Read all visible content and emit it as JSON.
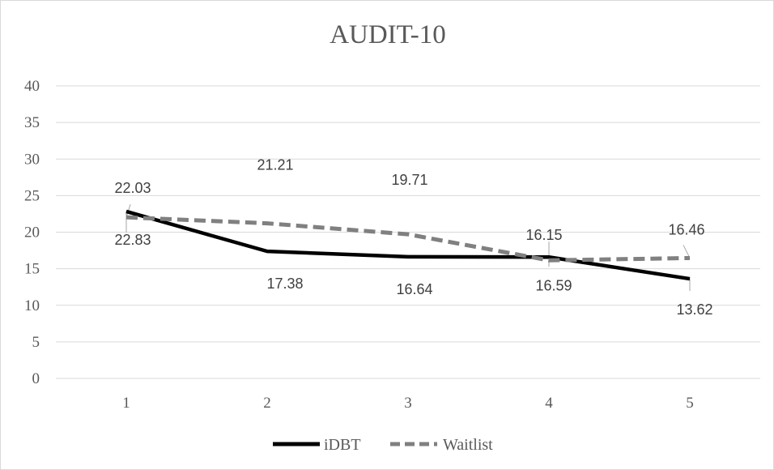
{
  "chart_data": {
    "type": "line",
    "title": "AUDIT-10",
    "categories": [
      "1",
      "2",
      "3",
      "4",
      "5"
    ],
    "ylim": [
      0,
      40
    ],
    "yticks": [
      "0",
      "5",
      "10",
      "15",
      "20",
      "25",
      "30",
      "35",
      "40"
    ],
    "grid": true,
    "legend_position": "bottom",
    "series": [
      {
        "name": "iDBT",
        "values": [
          22.83,
          17.38,
          16.64,
          16.59,
          13.62
        ],
        "labels": [
          "22.83",
          "17.38",
          "16.64",
          "16.59",
          "13.62"
        ],
        "color": "#000000",
        "style": "solid"
      },
      {
        "name": "Waitlist",
        "values": [
          22.03,
          21.21,
          19.71,
          16.15,
          16.46
        ],
        "labels": [
          "22.03",
          "21.21",
          "19.71",
          "16.15",
          "16.46"
        ],
        "color": "#808080",
        "style": "dashed"
      }
    ]
  }
}
